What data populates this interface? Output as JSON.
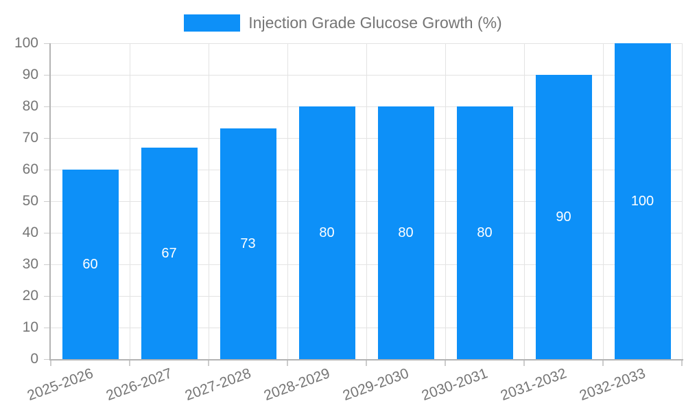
{
  "chart_data": {
    "type": "bar",
    "categories": [
      "2025-2026",
      "2026-2027",
      "2027-2028",
      "2028-2029",
      "2029-2030",
      "2030-2031",
      "2031-2032",
      "2032-2033"
    ],
    "series": [
      {
        "name": "Injection Grade Glucose Growth (%)",
        "values": [
          60,
          67,
          73,
          80,
          80,
          80,
          90,
          100
        ],
        "color": "#0d90f8"
      }
    ],
    "ylim": [
      0,
      100
    ],
    "yticks": [
      0,
      10,
      20,
      30,
      40,
      50,
      60,
      70,
      80,
      90,
      100
    ],
    "grid": true,
    "legend_position": "top-center",
    "value_labels_position": "inside-center",
    "value_label_color": "#ffffff",
    "x_label_rotation_deg": -20,
    "colors": {
      "bar": "#0d90f8",
      "grid": "#e3e3e3",
      "axis": "#b3b3b3",
      "tick": "#cccccc",
      "tick_label": "#757575"
    }
  }
}
